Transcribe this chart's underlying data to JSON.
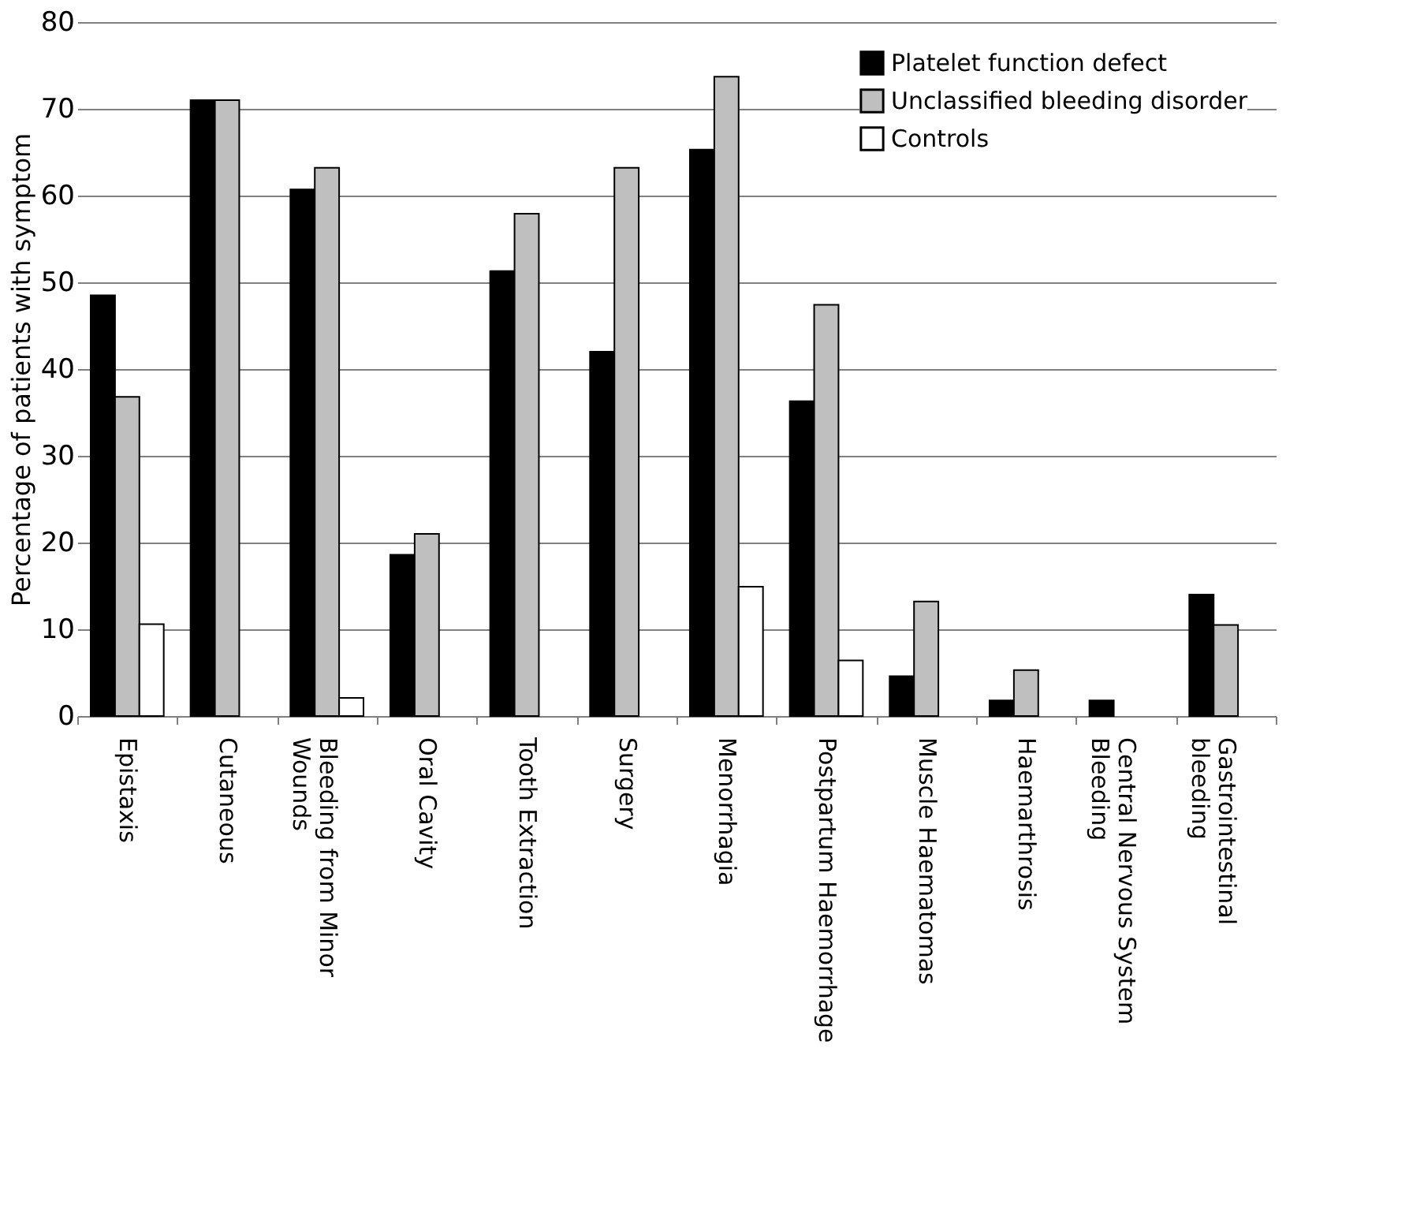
{
  "chart_data": {
    "type": "bar",
    "ylabel": "Percentage of patients with symptom",
    "categories": [
      "Epistaxis",
      "Cutaneous",
      "Bleeding from Minor Wounds",
      "Oral Cavity",
      "Tooth Extraction",
      "Surgery",
      "Menorrhagia",
      "Postpartum Haemorrhage",
      "Muscle Haematomas",
      "Haemarthrosis",
      "Central Nervous System Bleeding",
      "Gastrointestinal bleeding"
    ],
    "series": [
      {
        "name": "Platelet function defect",
        "color": "#000000",
        "values": [
          48.5,
          71,
          60.7,
          18.6,
          51.3,
          42,
          65.3,
          36.3,
          4.6,
          1.8,
          1.8,
          14
        ]
      },
      {
        "name": "Unclassified bleeding disorder",
        "color": "#bfbfbf",
        "values": [
          36.8,
          71,
          63.2,
          21,
          57.9,
          63.2,
          73.7,
          47.4,
          13.2,
          5.3,
          0,
          10.5
        ]
      },
      {
        "name": "Controls",
        "color": "#ffffff",
        "values": [
          10.6,
          0,
          2.1,
          0,
          0,
          0,
          14.9,
          6.4,
          0,
          0,
          0,
          0
        ]
      }
    ],
    "ylim": [
      0,
      80
    ],
    "yticks": [
      0,
      10,
      20,
      30,
      40,
      50,
      60,
      70,
      80
    ],
    "grid": "y",
    "legend": "top right"
  }
}
